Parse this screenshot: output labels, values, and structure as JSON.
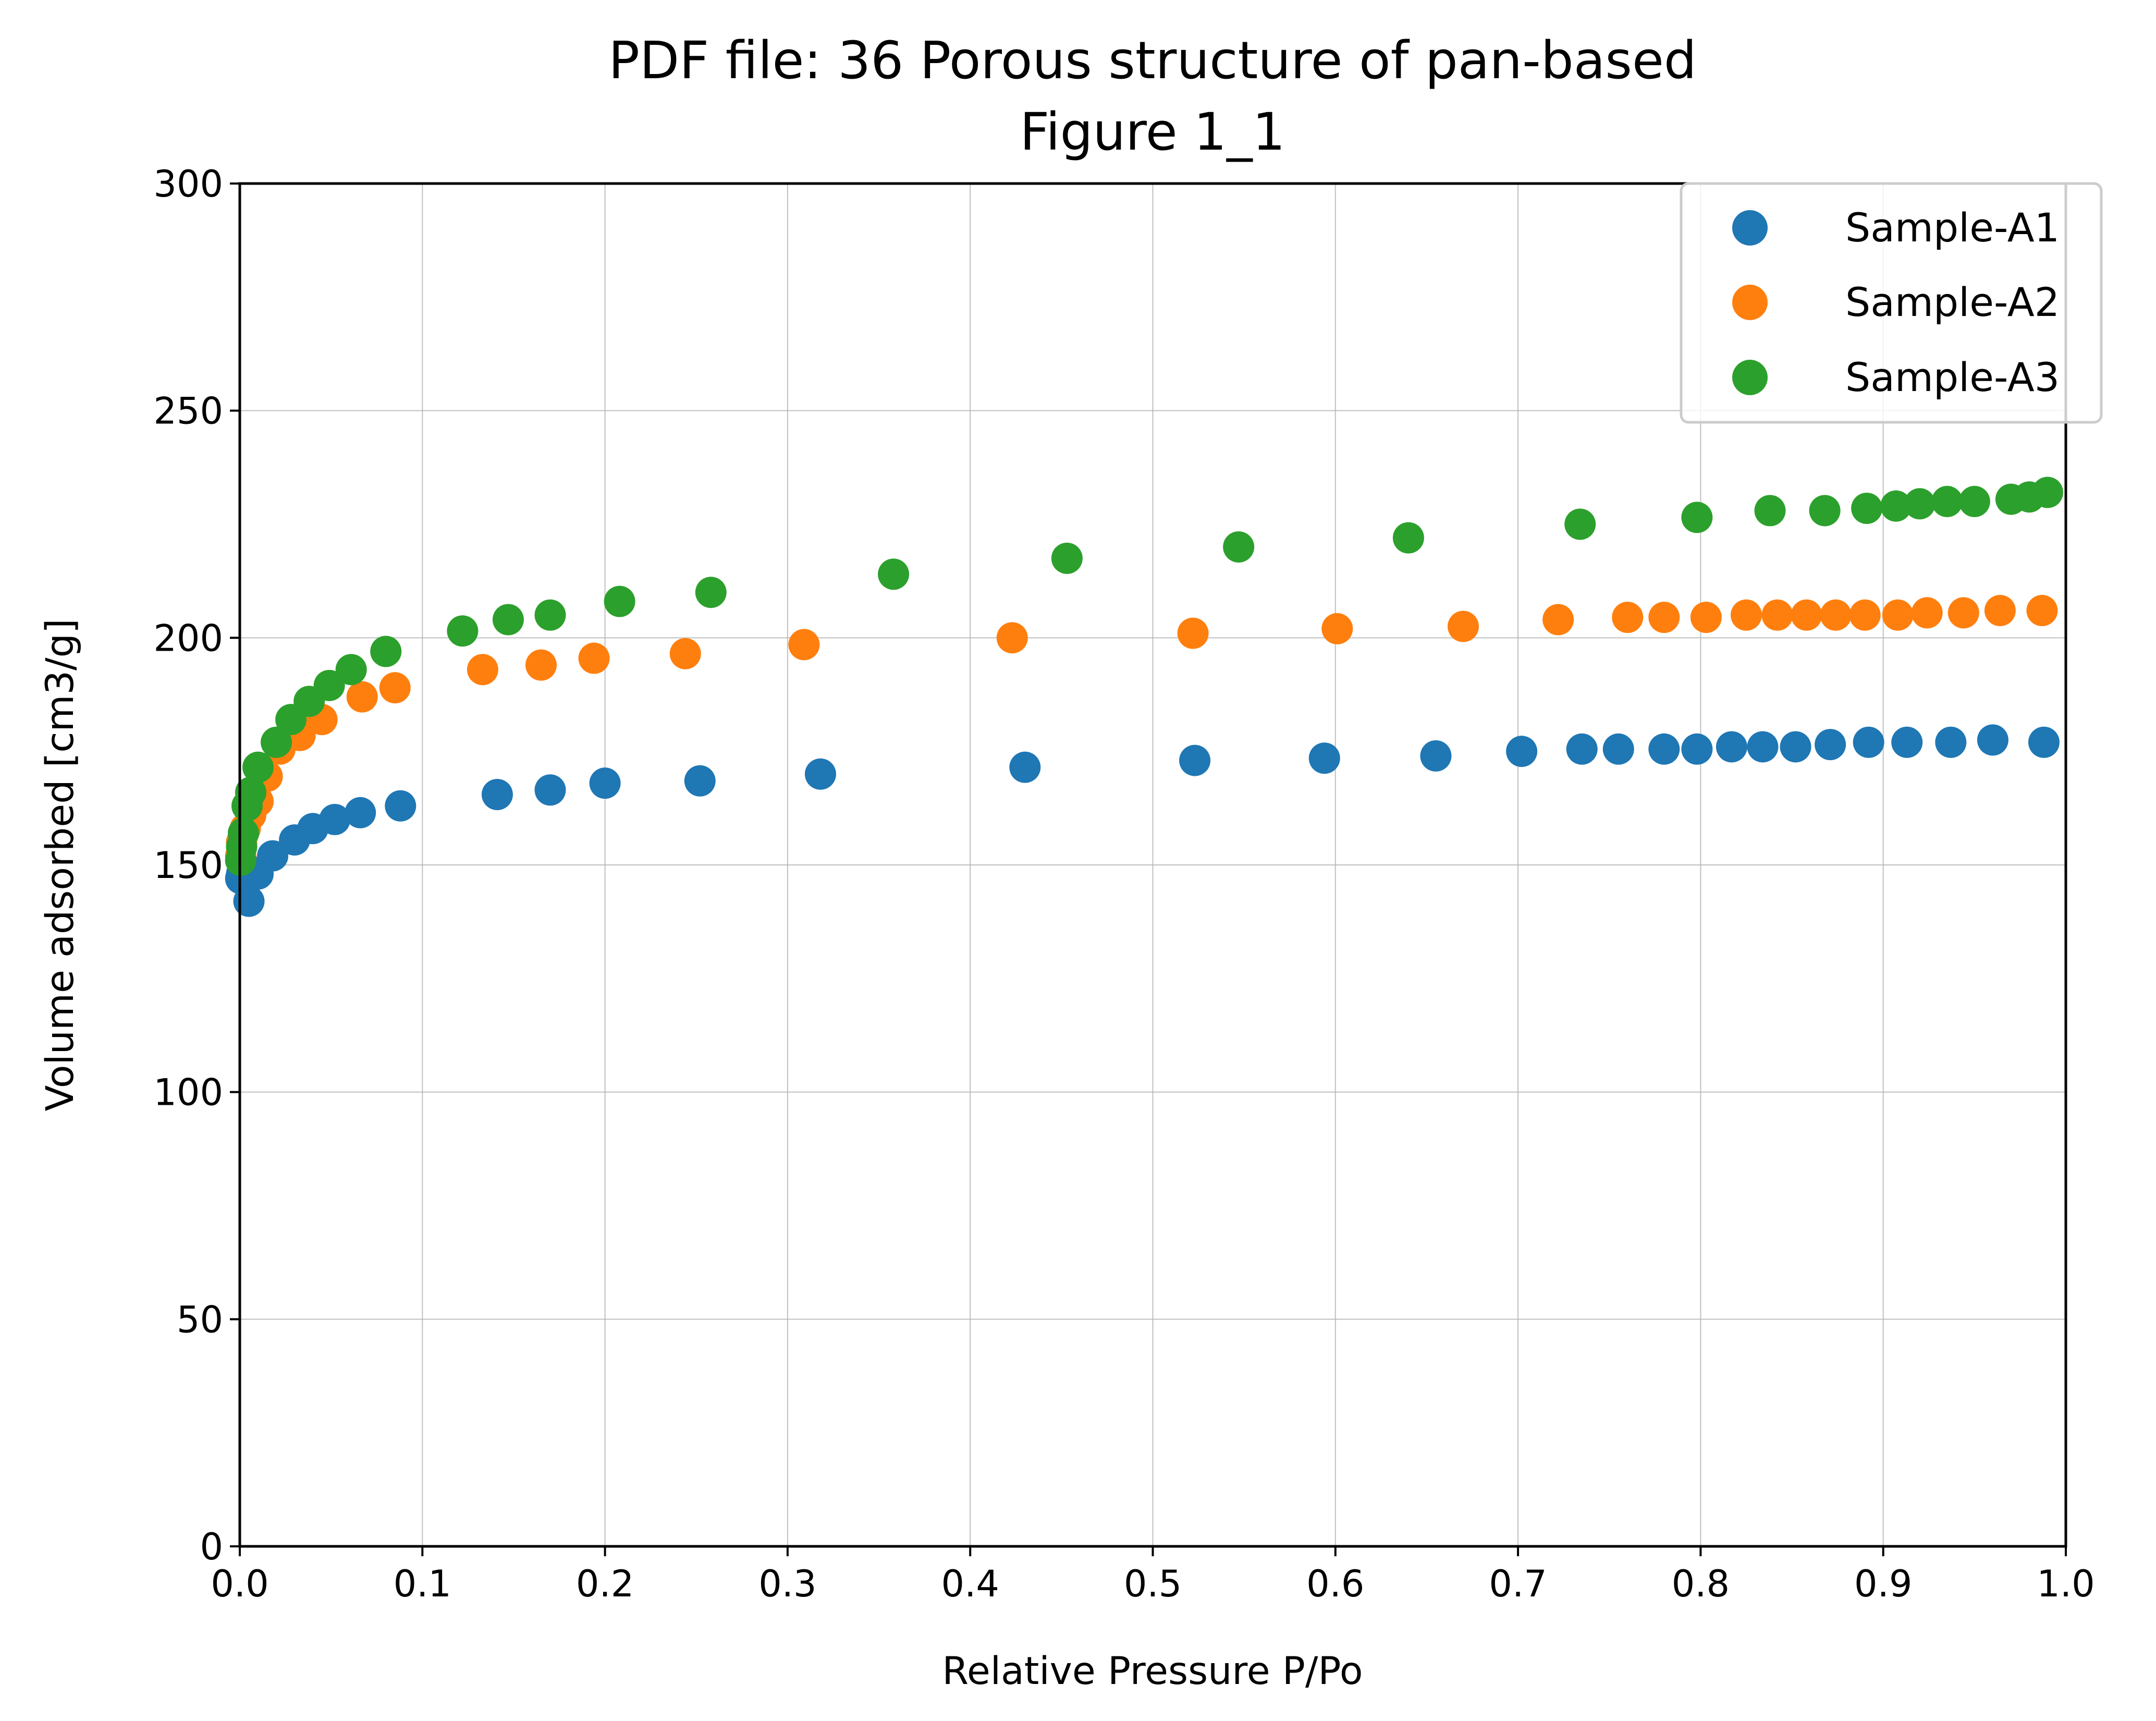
{
  "chart_data": {
    "type": "scatter",
    "title_lines": [
      "PDF file: 36 Porous structure of pan-based",
      "Figure 1_1"
    ],
    "xlabel": "Relative Pressure P/Po",
    "ylabel": "Volume adsorbed [cm3/g]",
    "xlim": [
      0.0,
      1.0
    ],
    "ylim": [
      0,
      300
    ],
    "xticks": [
      "0.0",
      "0.1",
      "0.2",
      "0.3",
      "0.4",
      "0.5",
      "0.6",
      "0.7",
      "0.8",
      "0.9",
      "1.0"
    ],
    "yticks": [
      "0",
      "50",
      "100",
      "150",
      "200",
      "250",
      "300"
    ],
    "grid": true,
    "legend_position": "top-right",
    "series": [
      {
        "name": "Sample-A1",
        "color": "#1f77b4",
        "points": [
          [
            0.0005,
            147
          ],
          [
            0.001,
            148
          ],
          [
            0.002,
            150
          ],
          [
            0.005,
            142
          ],
          [
            0.01,
            148
          ],
          [
            0.018,
            152
          ],
          [
            0.03,
            155.5
          ],
          [
            0.04,
            158
          ],
          [
            0.052,
            160
          ],
          [
            0.066,
            161.5
          ],
          [
            0.088,
            163
          ],
          [
            0.141,
            165.5
          ],
          [
            0.17,
            166.5
          ],
          [
            0.2,
            168
          ],
          [
            0.252,
            168.5
          ],
          [
            0.318,
            170
          ],
          [
            0.43,
            171.5
          ],
          [
            0.523,
            173
          ],
          [
            0.594,
            173.5
          ],
          [
            0.655,
            174
          ],
          [
            0.702,
            175
          ],
          [
            0.735,
            175.5
          ],
          [
            0.755,
            175.5
          ],
          [
            0.78,
            175.5
          ],
          [
            0.798,
            175.5
          ],
          [
            0.817,
            176
          ],
          [
            0.834,
            176
          ],
          [
            0.852,
            176
          ],
          [
            0.871,
            176.5
          ],
          [
            0.892,
            177
          ],
          [
            0.913,
            177
          ],
          [
            0.937,
            177
          ],
          [
            0.96,
            177.5
          ],
          [
            0.988,
            177
          ]
        ]
      },
      {
        "name": "Sample-A2",
        "color": "#ff7f0e",
        "points": [
          [
            0.0005,
            152
          ],
          [
            0.001,
            155
          ],
          [
            0.003,
            158
          ],
          [
            0.006,
            161
          ],
          [
            0.01,
            164
          ],
          [
            0.015,
            169.5
          ],
          [
            0.022,
            175.5
          ],
          [
            0.033,
            178.5
          ],
          [
            0.045,
            182
          ],
          [
            0.067,
            187
          ],
          [
            0.085,
            189
          ],
          [
            0.133,
            193
          ],
          [
            0.165,
            194
          ],
          [
            0.194,
            195.5
          ],
          [
            0.244,
            196.5
          ],
          [
            0.309,
            198.5
          ],
          [
            0.423,
            200
          ],
          [
            0.522,
            201
          ],
          [
            0.601,
            202
          ],
          [
            0.67,
            202.5
          ],
          [
            0.722,
            204
          ],
          [
            0.76,
            204.5
          ],
          [
            0.78,
            204.5
          ],
          [
            0.803,
            204.5
          ],
          [
            0.825,
            205
          ],
          [
            0.842,
            205
          ],
          [
            0.858,
            205
          ],
          [
            0.874,
            205
          ],
          [
            0.89,
            205
          ],
          [
            0.908,
            205
          ],
          [
            0.924,
            205.5
          ],
          [
            0.944,
            205.5
          ],
          [
            0.964,
            206
          ],
          [
            0.987,
            206
          ]
        ]
      },
      {
        "name": "Sample-A3",
        "color": "#2ca02c",
        "points": [
          [
            0.0005,
            151
          ],
          [
            0.001,
            154
          ],
          [
            0.002,
            157
          ],
          [
            0.004,
            163
          ],
          [
            0.006,
            166
          ],
          [
            0.01,
            171.5
          ],
          [
            0.02,
            177
          ],
          [
            0.028,
            182
          ],
          [
            0.038,
            186
          ],
          [
            0.049,
            189.5
          ],
          [
            0.061,
            193
          ],
          [
            0.08,
            197
          ],
          [
            0.122,
            201.5
          ],
          [
            0.147,
            204
          ],
          [
            0.17,
            205
          ],
          [
            0.208,
            208
          ],
          [
            0.258,
            210
          ],
          [
            0.358,
            214
          ],
          [
            0.453,
            217.5
          ],
          [
            0.547,
            220
          ],
          [
            0.64,
            222
          ],
          [
            0.734,
            225
          ],
          [
            0.798,
            226.5
          ],
          [
            0.838,
            228
          ],
          [
            0.868,
            228
          ],
          [
            0.891,
            228.5
          ],
          [
            0.907,
            229
          ],
          [
            0.92,
            229.5
          ],
          [
            0.935,
            230
          ],
          [
            0.95,
            230
          ],
          [
            0.97,
            230.5
          ],
          [
            0.98,
            231
          ],
          [
            0.99,
            232
          ]
        ]
      }
    ]
  }
}
